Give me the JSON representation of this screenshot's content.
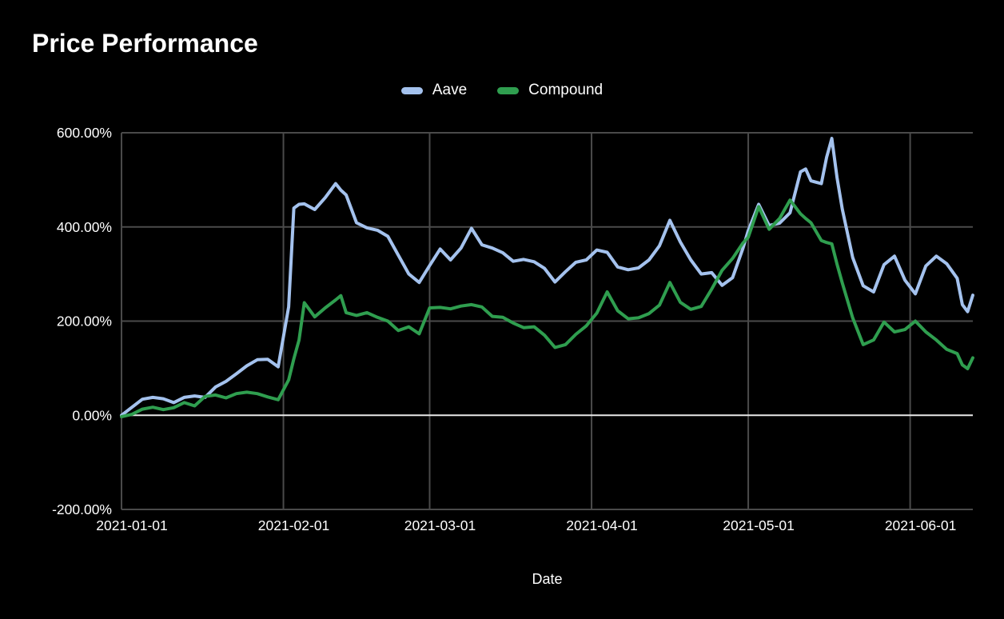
{
  "title": "Price Performance",
  "legend": [
    {
      "label": "Aave",
      "color": "#a4c2ee"
    },
    {
      "label": "Compound",
      "color": "#2f9e4f"
    }
  ],
  "colors": {
    "background": "#000000",
    "grid": "#4a4a4a",
    "zero_line": "#e8e8e8",
    "text": "#ffffff",
    "aave": "#a4c2ee",
    "compound": "#2f9e4f"
  },
  "chart_data": {
    "type": "line",
    "title": "Price Performance",
    "xlabel": "Date",
    "ylabel": "",
    "grid": true,
    "legend_position": "top-center",
    "ylim": [
      -200,
      600
    ],
    "y_ticks": [
      {
        "value": 600,
        "label": "600.00%"
      },
      {
        "value": 400,
        "label": "400.00%"
      },
      {
        "value": 200,
        "label": "200.00%"
      },
      {
        "value": 0,
        "label": "0.00%"
      },
      {
        "value": -200,
        "label": "-200.00%"
      }
    ],
    "x_ticks": [
      "2021-01-01",
      "2021-02-01",
      "2021-03-01",
      "2021-04-01",
      "2021-05-01",
      "2021-06-01"
    ],
    "x": [
      "2021-01-01",
      "2021-01-03",
      "2021-01-05",
      "2021-01-07",
      "2021-01-09",
      "2021-01-11",
      "2021-01-13",
      "2021-01-15",
      "2021-01-17",
      "2021-01-19",
      "2021-01-21",
      "2021-01-23",
      "2021-01-25",
      "2021-01-27",
      "2021-01-29",
      "2021-01-31",
      "2021-02-02",
      "2021-02-03",
      "2021-02-04",
      "2021-02-05",
      "2021-02-07",
      "2021-02-09",
      "2021-02-11",
      "2021-02-12",
      "2021-02-13",
      "2021-02-15",
      "2021-02-17",
      "2021-02-19",
      "2021-02-21",
      "2021-02-23",
      "2021-02-25",
      "2021-02-27",
      "2021-03-01",
      "2021-03-03",
      "2021-03-05",
      "2021-03-07",
      "2021-03-09",
      "2021-03-11",
      "2021-03-13",
      "2021-03-15",
      "2021-03-17",
      "2021-03-19",
      "2021-03-21",
      "2021-03-23",
      "2021-03-25",
      "2021-03-27",
      "2021-03-29",
      "2021-03-31",
      "2021-04-02",
      "2021-04-04",
      "2021-04-06",
      "2021-04-08",
      "2021-04-10",
      "2021-04-12",
      "2021-04-14",
      "2021-04-16",
      "2021-04-18",
      "2021-04-20",
      "2021-04-22",
      "2021-04-24",
      "2021-04-26",
      "2021-04-28",
      "2021-04-30",
      "2021-05-01",
      "2021-05-03",
      "2021-05-05",
      "2021-05-07",
      "2021-05-09",
      "2021-05-11",
      "2021-05-12",
      "2021-05-13",
      "2021-05-15",
      "2021-05-16",
      "2021-05-17",
      "2021-05-18",
      "2021-05-19",
      "2021-05-21",
      "2021-05-23",
      "2021-05-25",
      "2021-05-27",
      "2021-05-29",
      "2021-05-31",
      "2021-06-02",
      "2021-06-04",
      "2021-06-06",
      "2021-06-08",
      "2021-06-10",
      "2021-06-11",
      "2021-06-12",
      "2021-06-13"
    ],
    "series": [
      {
        "name": "Aave",
        "color": "#a4c2ee",
        "values": [
          0,
          17,
          34,
          38,
          35,
          27,
          38,
          41,
          38,
          60,
          72,
          88,
          105,
          118,
          119,
          103,
          230,
          440,
          448,
          449,
          437,
          462,
          492,
          478,
          468,
          409,
          398,
          393,
          380,
          340,
          300,
          282,
          318,
          353,
          330,
          355,
          397,
          362,
          355,
          345,
          327,
          331,
          326,
          312,
          283,
          305,
          325,
          330,
          351,
          346,
          315,
          309,
          313,
          330,
          360,
          414,
          368,
          330,
          300,
          303,
          276,
          292,
          355,
          392,
          448,
          403,
          408,
          430,
          517,
          523,
          498,
          492,
          548,
          588,
          505,
          438,
          335,
          275,
          262,
          320,
          338,
          287,
          258,
          317,
          338,
          322,
          291,
          235,
          220,
          255
        ]
      },
      {
        "name": "Compound",
        "color": "#2f9e4f",
        "values": [
          -3,
          2,
          13,
          17,
          12,
          16,
          27,
          20,
          40,
          43,
          37,
          46,
          49,
          46,
          39,
          33,
          75,
          120,
          160,
          239,
          209,
          228,
          245,
          254,
          218,
          212,
          218,
          208,
          200,
          180,
          188,
          173,
          228,
          229,
          226,
          232,
          235,
          230,
          210,
          208,
          196,
          186,
          188,
          170,
          144,
          150,
          172,
          190,
          217,
          262,
          222,
          205,
          207,
          216,
          234,
          282,
          240,
          225,
          231,
          268,
          308,
          333,
          366,
          378,
          443,
          395,
          418,
          457,
          428,
          418,
          409,
          371,
          367,
          364,
          321,
          281,
          207,
          150,
          160,
          198,
          177,
          182,
          200,
          177,
          160,
          140,
          131,
          107,
          99,
          122
        ]
      }
    ]
  }
}
